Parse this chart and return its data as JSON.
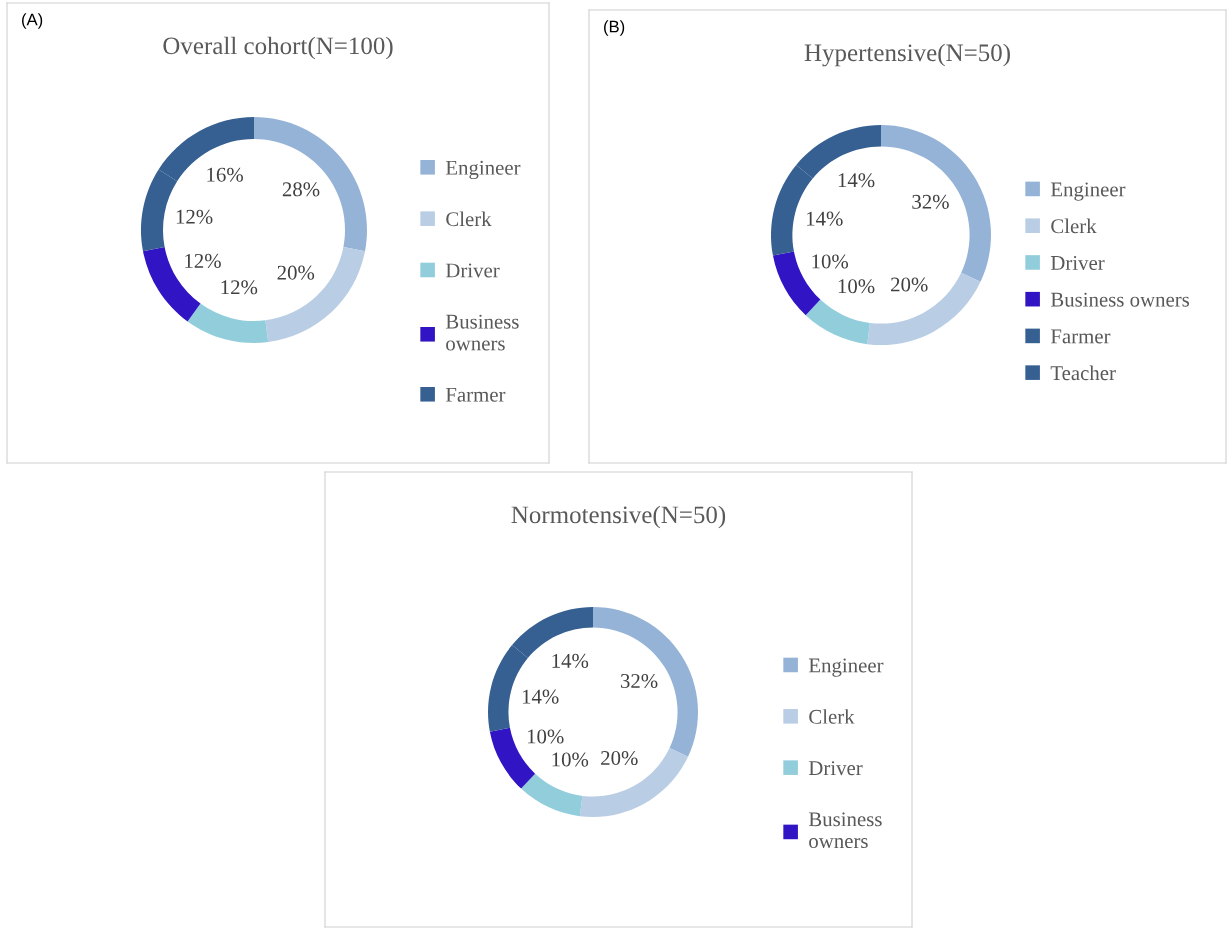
{
  "chart_data": [
    {
      "type": "donut",
      "title": "Overall cohort(N=100)",
      "annotations": [
        "(A)"
      ],
      "categories": [
        "Engineer",
        "Clerk",
        "Driver",
        "Business owners",
        "Farmer",
        null
      ],
      "values": [
        28,
        20,
        12,
        12,
        12,
        16
      ],
      "value_labels": [
        "28%",
        "20%",
        "12%",
        "12%",
        "12%",
        "16%"
      ],
      "colors": [
        "#95b3d7",
        "#b9cde5",
        "#92cddc",
        "#3114c4",
        "#366092",
        "#366092"
      ],
      "legend": "right"
    },
    {
      "type": "donut",
      "title": "Hypertensive(N=50)",
      "annotations": [
        "(B)"
      ],
      "categories": [
        "Engineer",
        "Clerk",
        "Driver",
        "Business owners",
        "Farmer",
        "Teacher"
      ],
      "values": [
        32,
        20,
        10,
        10,
        14,
        14
      ],
      "value_labels": [
        "32%",
        "20%",
        "10%",
        "10%",
        "14%",
        "14%"
      ],
      "colors": [
        "#95b3d7",
        "#b9cde5",
        "#92cddc",
        "#3114c4",
        "#366092",
        "#366092"
      ],
      "legend": "right"
    },
    {
      "type": "donut",
      "title": "Normotensive(N=50)",
      "categories": [
        "Engineer",
        "Clerk",
        "Driver",
        "Business owners",
        null,
        null
      ],
      "values": [
        32,
        20,
        10,
        10,
        14,
        14
      ],
      "value_labels": [
        "32%",
        "20%",
        "10%",
        "10%",
        "14%",
        "14%"
      ],
      "colors": [
        "#95b3d7",
        "#b9cde5",
        "#92cddc",
        "#3114c4",
        "#366092",
        "#366092"
      ],
      "legend": "right"
    }
  ]
}
